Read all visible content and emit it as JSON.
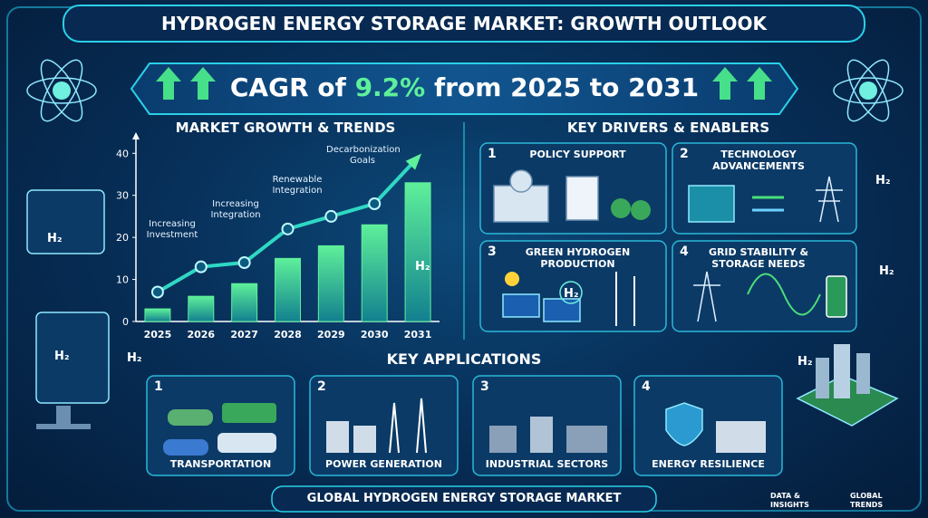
{
  "header": {
    "title": "HYDROGEN ENERGY STORAGE MARKET: GROWTH OUTLOOK"
  },
  "banner": {
    "prefix": "CAGR of",
    "highlight": "9.2%",
    "suffix": "from 2025 to 2031"
  },
  "chart_data": {
    "type": "bar",
    "title": "MARKET GROWTH & TRENDS",
    "categories": [
      "2025",
      "2026",
      "2027",
      "2028",
      "2029",
      "2030",
      "2031"
    ],
    "series": [
      {
        "type": "bar",
        "color": "#2fc98a",
        "values": [
          3,
          6,
          9,
          15,
          18,
          23,
          33
        ]
      },
      {
        "type": "line",
        "color": "#2fd8c4",
        "values": [
          7,
          13,
          14,
          22,
          25,
          28,
          39
        ]
      }
    ],
    "ylim": [
      0,
      42
    ],
    "yticks": [
      0,
      10,
      20,
      30,
      40
    ],
    "annotations": [
      "Increasing Investment",
      "Increasing Integration",
      "Renewable Integration",
      "Decarbonization Goals"
    ]
  },
  "drivers": {
    "title": "KEY DRIVERS & ENABLERS",
    "items": [
      {
        "number": "1",
        "label": "POLICY SUPPORT"
      },
      {
        "number": "2",
        "label": "TECHNOLOGY ADVANCEMENTS"
      },
      {
        "number": "3",
        "label": "GREEN HYDROGEN PRODUCTION"
      },
      {
        "number": "4",
        "label": "GRID STABILITY & STORAGE NEEDS"
      }
    ]
  },
  "applications": {
    "title": "KEY APPLICATIONS",
    "items": [
      {
        "number": "1",
        "label": "TRANSPORTATION"
      },
      {
        "number": "2",
        "label": "POWER GENERATION"
      },
      {
        "number": "3",
        "label": "INDUSTRIAL SECTORS"
      },
      {
        "number": "4",
        "label": "ENERGY RESILIENCE"
      }
    ]
  },
  "footer": {
    "title": "GLOBAL HYDROGEN ENERGY STORAGE MARKET",
    "badges": [
      [
        "DATA &",
        "INSIGHTS"
      ],
      [
        "GLOBAL",
        "TRENDS"
      ]
    ]
  },
  "h2_label": "H₂"
}
